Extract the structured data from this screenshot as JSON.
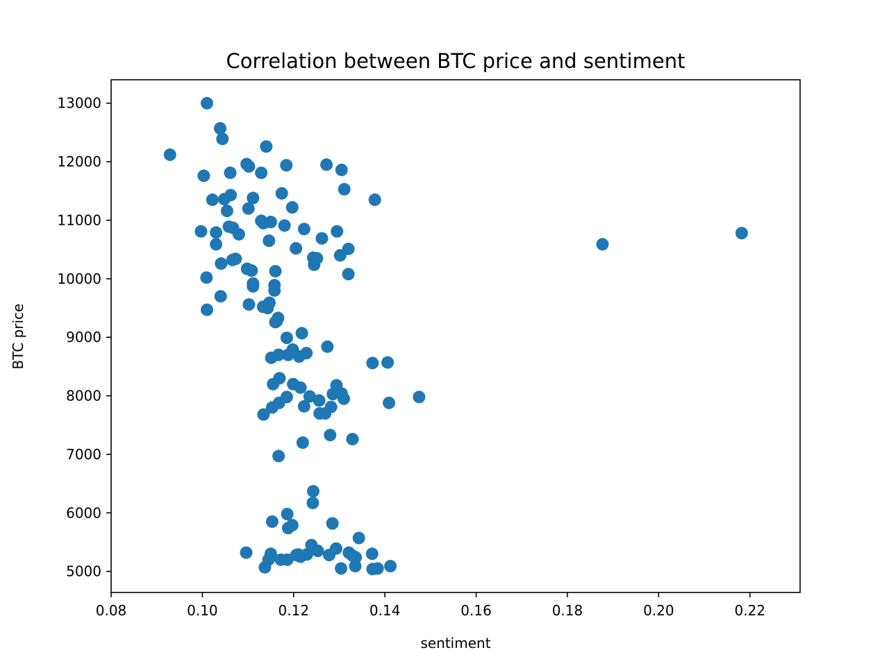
{
  "chart_data": {
    "type": "scatter",
    "title": "Correlation between BTC price and sentiment",
    "xlabel": "sentiment",
    "ylabel": "BTC price",
    "xlim": [
      0.08,
      0.231
    ],
    "ylim": [
      4640,
      13400
    ],
    "xticks": [
      0.08,
      0.1,
      0.12,
      0.14,
      0.16,
      0.18,
      0.2,
      0.22
    ],
    "xtick_labels": [
      "0.08",
      "0.10",
      "0.12",
      "0.14",
      "0.16",
      "0.18",
      "0.20",
      "0.22"
    ],
    "yticks": [
      5000,
      6000,
      7000,
      8000,
      9000,
      10000,
      11000,
      12000,
      13000
    ],
    "ytick_labels": [
      "5000",
      "6000",
      "7000",
      "8000",
      "9000",
      "10000",
      "11000",
      "12000",
      "13000"
    ],
    "grid": false,
    "marker_color": "#1f77b4",
    "series": [
      {
        "x": [
          0.101,
          0.1039,
          0.1044,
          0.0929,
          0.114,
          0.1003,
          0.1061,
          0.1097,
          0.1102,
          0.1129,
          0.1184,
          0.1272,
          0.1305,
          0.1311,
          0.1378,
          0.1022,
          0.1062,
          0.1048,
          0.1054,
          0.1101,
          0.1111,
          0.1174,
          0.1197,
          0.0997,
          0.103,
          0.1058,
          0.1067,
          0.108,
          0.1129,
          0.1134,
          0.115,
          0.118,
          0.1223,
          0.1295,
          0.103,
          0.1146,
          0.1205,
          0.1262,
          0.132,
          0.1041,
          0.1066,
          0.1073,
          0.1098,
          0.1108,
          0.116,
          0.1243,
          0.1245,
          0.1251,
          0.1302,
          0.1009,
          0.1111,
          0.1111,
          0.1158,
          0.1158,
          0.132,
          0.104,
          0.1102,
          0.1133,
          0.1143,
          0.1147,
          0.1163,
          0.101,
          0.116,
          0.1166,
          0.1218,
          0.1185,
          0.1274,
          0.1151,
          0.1167,
          0.1188,
          0.1198,
          0.1212,
          0.1228,
          0.1373,
          0.1406,
          0.1169,
          0.1155,
          0.1199,
          0.1215,
          0.1294,
          0.1235,
          0.1256,
          0.1286,
          0.1305,
          0.131,
          0.1185,
          0.1168,
          0.1153,
          0.1223,
          0.1282,
          0.1257,
          0.1269,
          0.1134,
          0.1475,
          0.1409,
          0.128,
          0.1329,
          0.122,
          0.1167,
          0.1243,
          0.1242,
          0.1285,
          0.1186,
          0.1197,
          0.1153,
          0.1188,
          0.1343,
          0.1239,
          0.1293,
          0.1253,
          0.1096,
          0.115,
          0.1206,
          0.1215,
          0.1229,
          0.1278,
          0.1321,
          0.1336,
          0.1372,
          0.1145,
          0.1172,
          0.1186,
          0.121,
          0.1329,
          0.1335,
          0.1412,
          0.1137,
          0.1304,
          0.1373,
          0.1384,
          0.1877,
          0.2182
        ],
        "y": [
          13000,
          12570,
          12390,
          12120,
          12260,
          11760,
          11810,
          11960,
          11920,
          11810,
          11940,
          11950,
          11860,
          11530,
          11350,
          11350,
          11430,
          11360,
          11160,
          11200,
          11380,
          11460,
          11220,
          10810,
          10790,
          10890,
          10870,
          10760,
          10990,
          10950,
          10970,
          10910,
          10850,
          10810,
          10590,
          10650,
          10520,
          10690,
          10510,
          10260,
          10320,
          10340,
          10170,
          10140,
          10130,
          10360,
          10240,
          10350,
          10400,
          10020,
          9920,
          9870,
          9890,
          9800,
          10080,
          9700,
          9560,
          9520,
          9500,
          9590,
          9280,
          9470,
          9260,
          9330,
          9070,
          8990,
          8840,
          8650,
          8700,
          8700,
          8790,
          8670,
          8730,
          8560,
          8570,
          8300,
          8200,
          8200,
          8140,
          8180,
          7990,
          7920,
          8030,
          8040,
          7950,
          7980,
          7880,
          7800,
          7820,
          7810,
          7700,
          7700,
          7680,
          7980,
          7880,
          7330,
          7260,
          7200,
          6970,
          6370,
          6170,
          5820,
          5980,
          5790,
          5850,
          5740,
          5570,
          5450,
          5390,
          5350,
          5320,
          5300,
          5280,
          5250,
          5290,
          5280,
          5320,
          5240,
          5300,
          5200,
          5200,
          5200,
          5290,
          5270,
          5090,
          5090,
          5070,
          5050,
          5040,
          5050,
          10590,
          10780
        ]
      }
    ]
  }
}
